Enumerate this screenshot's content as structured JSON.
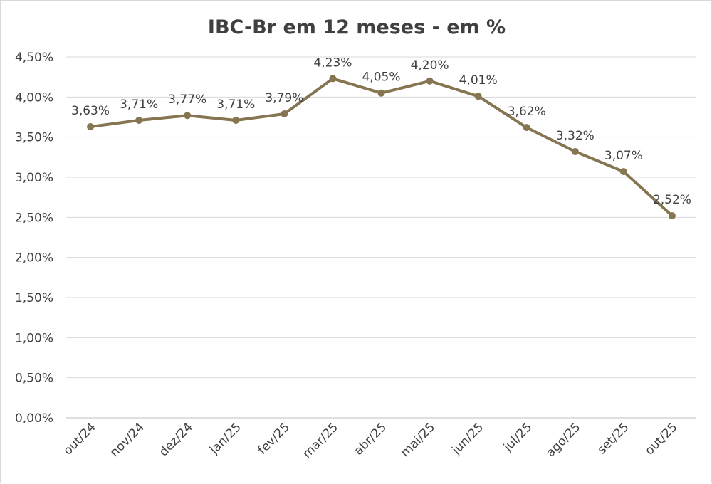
{
  "chart_data": {
    "type": "line",
    "title": "IBC-Br em 12 meses - em %",
    "xlabel": "",
    "ylabel": "",
    "categories": [
      "out/24",
      "nov/24",
      "dez/24",
      "jan/25",
      "fev/25",
      "mar/25",
      "abr/25",
      "mai/25",
      "jun/25",
      "jul/25",
      "ago/25",
      "set/25",
      "out/25"
    ],
    "values": [
      3.63,
      3.71,
      3.77,
      3.71,
      3.79,
      4.23,
      4.05,
      4.2,
      4.01,
      3.62,
      3.32,
      3.07,
      2.52
    ],
    "data_labels": [
      "3,63%",
      "3,71%",
      "3,77%",
      "3,71%",
      "3,79%",
      "4,23%",
      "4,05%",
      "4,20%",
      "4,01%",
      "3,62%",
      "3,32%",
      "3,07%",
      "2,52%"
    ],
    "ylim": [
      0,
      4.5
    ],
    "yticks": [
      "0,00%",
      "0,50%",
      "1,00%",
      "1,50%",
      "2,00%",
      "2,50%",
      "3,00%",
      "3,50%",
      "4,00%",
      "4,50%"
    ],
    "grid": true,
    "legend": "none",
    "colors": {
      "line": "#857550",
      "grid": "#d9d9d9",
      "text": "#404040"
    }
  }
}
